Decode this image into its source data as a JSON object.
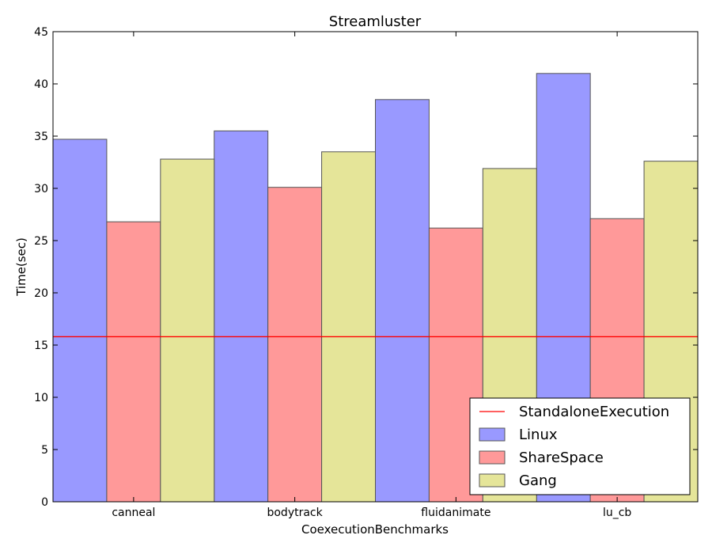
{
  "chart_data": {
    "type": "bar",
    "title": "Streamluster",
    "xlabel": "CoexecutionBenchmarks",
    "ylabel": "Time(sec)",
    "categories": [
      "canneal",
      "bodytrack",
      "fluidanimate",
      "lu_cb"
    ],
    "series": [
      {
        "name": "Linux",
        "values": [
          34.7,
          35.5,
          38.5,
          41.0
        ],
        "color": "#9999ff"
      },
      {
        "name": "ShareSpace",
        "values": [
          26.8,
          30.1,
          26.2,
          27.1
        ],
        "color": "#ff9999"
      },
      {
        "name": "Gang",
        "values": [
          32.8,
          33.5,
          31.9,
          32.6
        ],
        "color": "#e5e599"
      }
    ],
    "reference_line": {
      "name": "StandaloneExecution",
      "value": 15.8,
      "color": "#ff0000"
    },
    "ylim": [
      0,
      45
    ],
    "yticks": [
      0,
      5,
      10,
      15,
      20,
      25,
      30,
      35,
      40,
      45
    ],
    "grid": false,
    "legend_position": "bottom-right"
  }
}
